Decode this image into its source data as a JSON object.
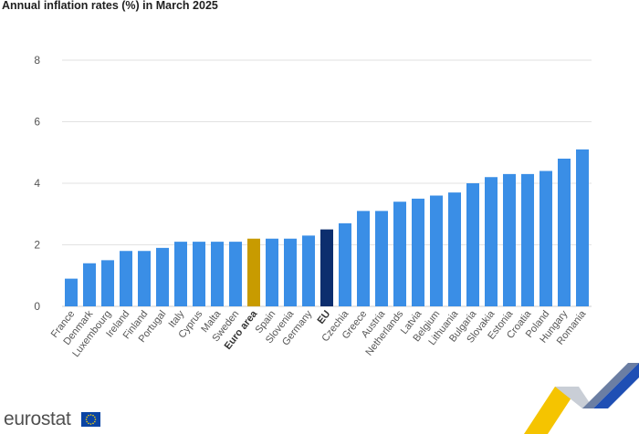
{
  "page": {
    "title": "Annual inflation rates (%) in March 2025",
    "logo_text": "eurostat"
  },
  "colors": {
    "bar": "#3a8ee6",
    "highlight_euro_area": "#c89b00",
    "highlight_eu": "#0c2e6e",
    "flag_blue": "#0a44a4",
    "flag_stars": "#ffd600"
  },
  "chart_data": {
    "type": "bar",
    "title": "Annual inflation rates (%) in March 2025",
    "xlabel": "",
    "ylabel": "",
    "ylim": [
      0,
      8
    ],
    "yticks": [
      0,
      2,
      4,
      6,
      8
    ],
    "grid": true,
    "categories": [
      "France",
      "Denmark",
      "Luxembourg",
      "Ireland",
      "Finland",
      "Portugal",
      "Italy",
      "Cyprus",
      "Malta",
      "Sweden",
      "Euro area",
      "Spain",
      "Slovenia",
      "Germany",
      "EU",
      "Czechia",
      "Greece",
      "Austria",
      "Netherlands",
      "Latvia",
      "Belgium",
      "Lithuania",
      "Bulgaria",
      "Slovakia",
      "Estonia",
      "Croatia",
      "Poland",
      "Hungary",
      "Romania"
    ],
    "values": [
      0.9,
      1.4,
      1.5,
      1.8,
      1.8,
      1.9,
      2.1,
      2.1,
      2.1,
      2.1,
      2.2,
      2.2,
      2.2,
      2.3,
      2.5,
      2.7,
      3.1,
      3.1,
      3.4,
      3.5,
      3.6,
      3.7,
      4.0,
      4.2,
      4.3,
      4.3,
      4.4,
      4.8,
      5.1
    ],
    "highlights": {
      "Euro area": "highlight_euro_area",
      "EU": "highlight_eu"
    }
  }
}
